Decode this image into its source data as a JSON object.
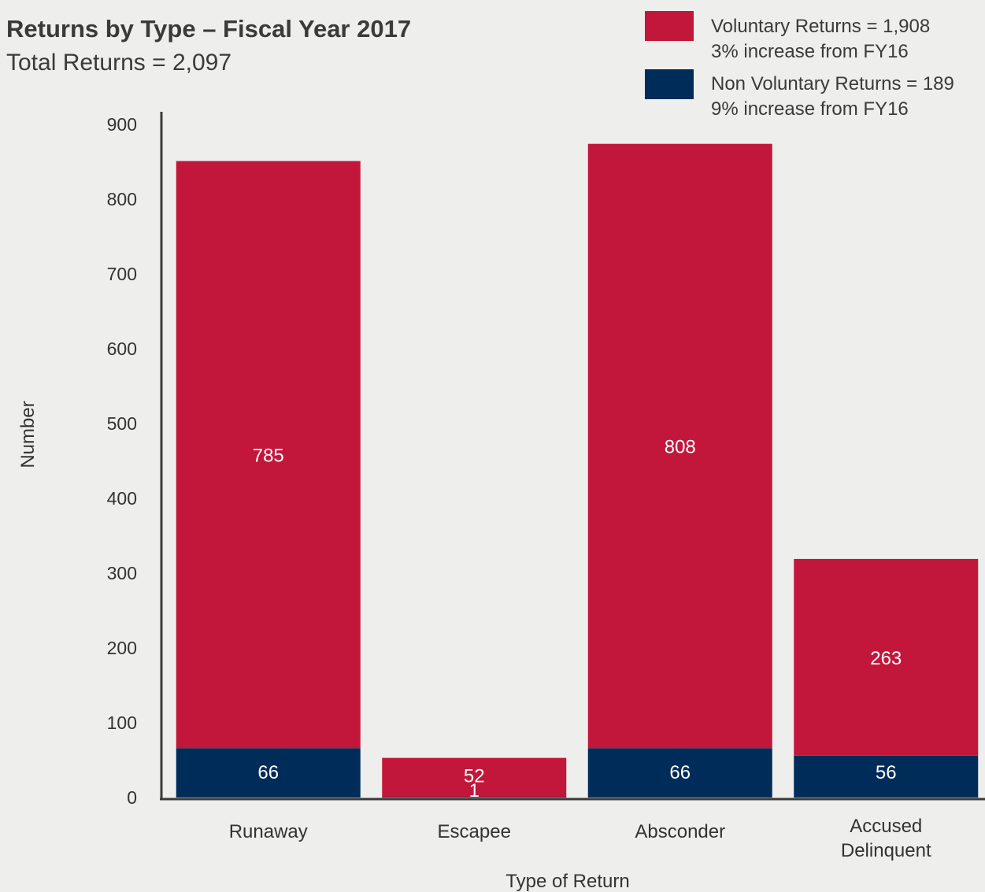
{
  "chart_data": {
    "type": "bar",
    "stacked": true,
    "title": "Returns by Type – Fiscal Year 2017",
    "subtitle": "Total Returns = 2,097",
    "xlabel": "Type of Return",
    "ylabel": "Number",
    "ylim": [
      0,
      900
    ],
    "yticks": [
      "0",
      "100",
      "200",
      "300",
      "400",
      "500",
      "600",
      "700",
      "800",
      "900"
    ],
    "categories": [
      [
        "Runaway"
      ],
      [
        "Escapee"
      ],
      [
        "Absconder"
      ],
      [
        "Accused",
        "Delinquent"
      ]
    ],
    "series": [
      {
        "name": "Non Voluntary Returns",
        "color": "#002c5a",
        "values": [
          66,
          1,
          66,
          56
        ]
      },
      {
        "name": "Voluntary Returns",
        "color": "#c2173a",
        "values": [
          785,
          52,
          808,
          263
        ]
      }
    ],
    "legend": {
      "position": "top-right",
      "items": [
        {
          "color": "#c2173a",
          "lines": [
            "Voluntary Returns = 1,908",
            "3% increase from FY16"
          ]
        },
        {
          "color": "#002c5a",
          "lines": [
            "Non Voluntary Returns = 189",
            "9% increase from FY16"
          ]
        }
      ]
    },
    "grid": false
  }
}
